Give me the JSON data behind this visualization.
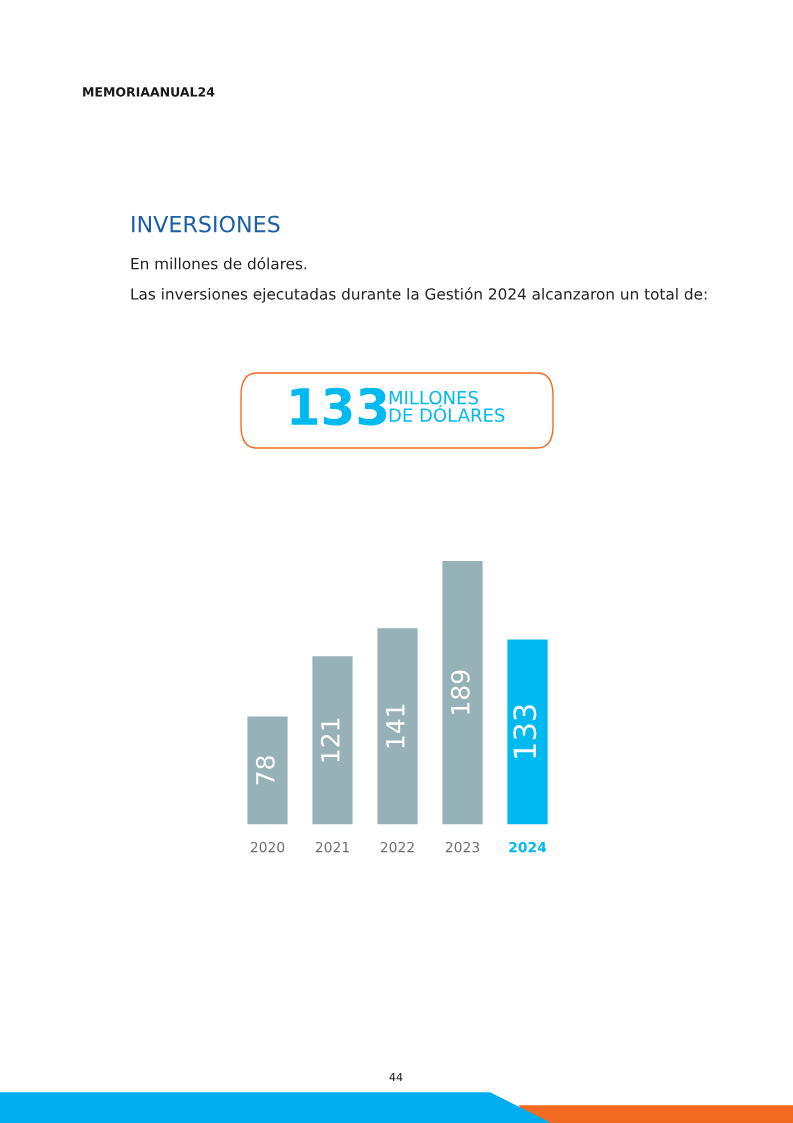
{
  "chart_data": {
    "type": "bar",
    "title": "INVERSIONES",
    "subtitle": "En millones de dólares.",
    "categories": [
      "2020",
      "2021",
      "2022",
      "2023",
      "2024"
    ],
    "values": [
      78,
      121,
      141,
      189,
      133
    ],
    "colors": [
      "#97b1b8",
      "#97b1b8",
      "#97b1b8",
      "#97b1b8",
      "#00b9ef"
    ],
    "data_labels": true,
    "annotations": [
      "MEMORIAANUAL24",
      "Las inversiones ejecutadas durante la Gestión 2024 alcanzaron un total de:",
      "133",
      "MILLONES\nDE DÓLARES",
      "44"
    ]
  }
}
